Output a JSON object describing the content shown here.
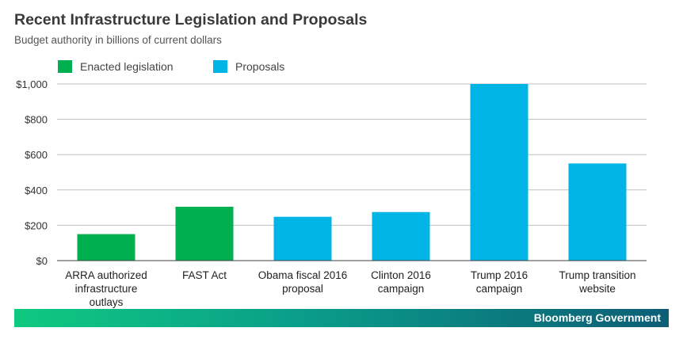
{
  "title": "Recent Infrastructure Legislation and Proposals",
  "subtitle": "Budget authority in billions of current dollars",
  "legend": [
    {
      "label": "Enacted legislation",
      "color": "#00b050"
    },
    {
      "label": "Proposals",
      "color": "#00b4e6"
    }
  ],
  "footer": {
    "brand": "Bloomberg Government"
  },
  "chart_data": {
    "type": "bar",
    "categories": [
      [
        "ARRA authorized",
        "infrastructure",
        "outlays"
      ],
      [
        "FAST Act"
      ],
      [
        "Obama fiscal 2016",
        "proposal"
      ],
      [
        "Clinton 2016",
        "campaign"
      ],
      [
        "Trump 2016",
        "campaign"
      ],
      [
        "Trump transition",
        "website"
      ]
    ],
    "values": [
      150,
      305,
      248,
      275,
      1000,
      550
    ],
    "groups": [
      "Enacted legislation",
      "Enacted legislation",
      "Proposals",
      "Proposals",
      "Proposals",
      "Proposals"
    ],
    "ylim": [
      0,
      1000
    ],
    "yticks": [
      0,
      200,
      400,
      600,
      800,
      1000
    ],
    "ytick_labels": [
      "$0",
      "$200",
      "$400",
      "$600",
      "$800",
      "$1,000"
    ],
    "grid": true,
    "legend_position": "top-left"
  }
}
